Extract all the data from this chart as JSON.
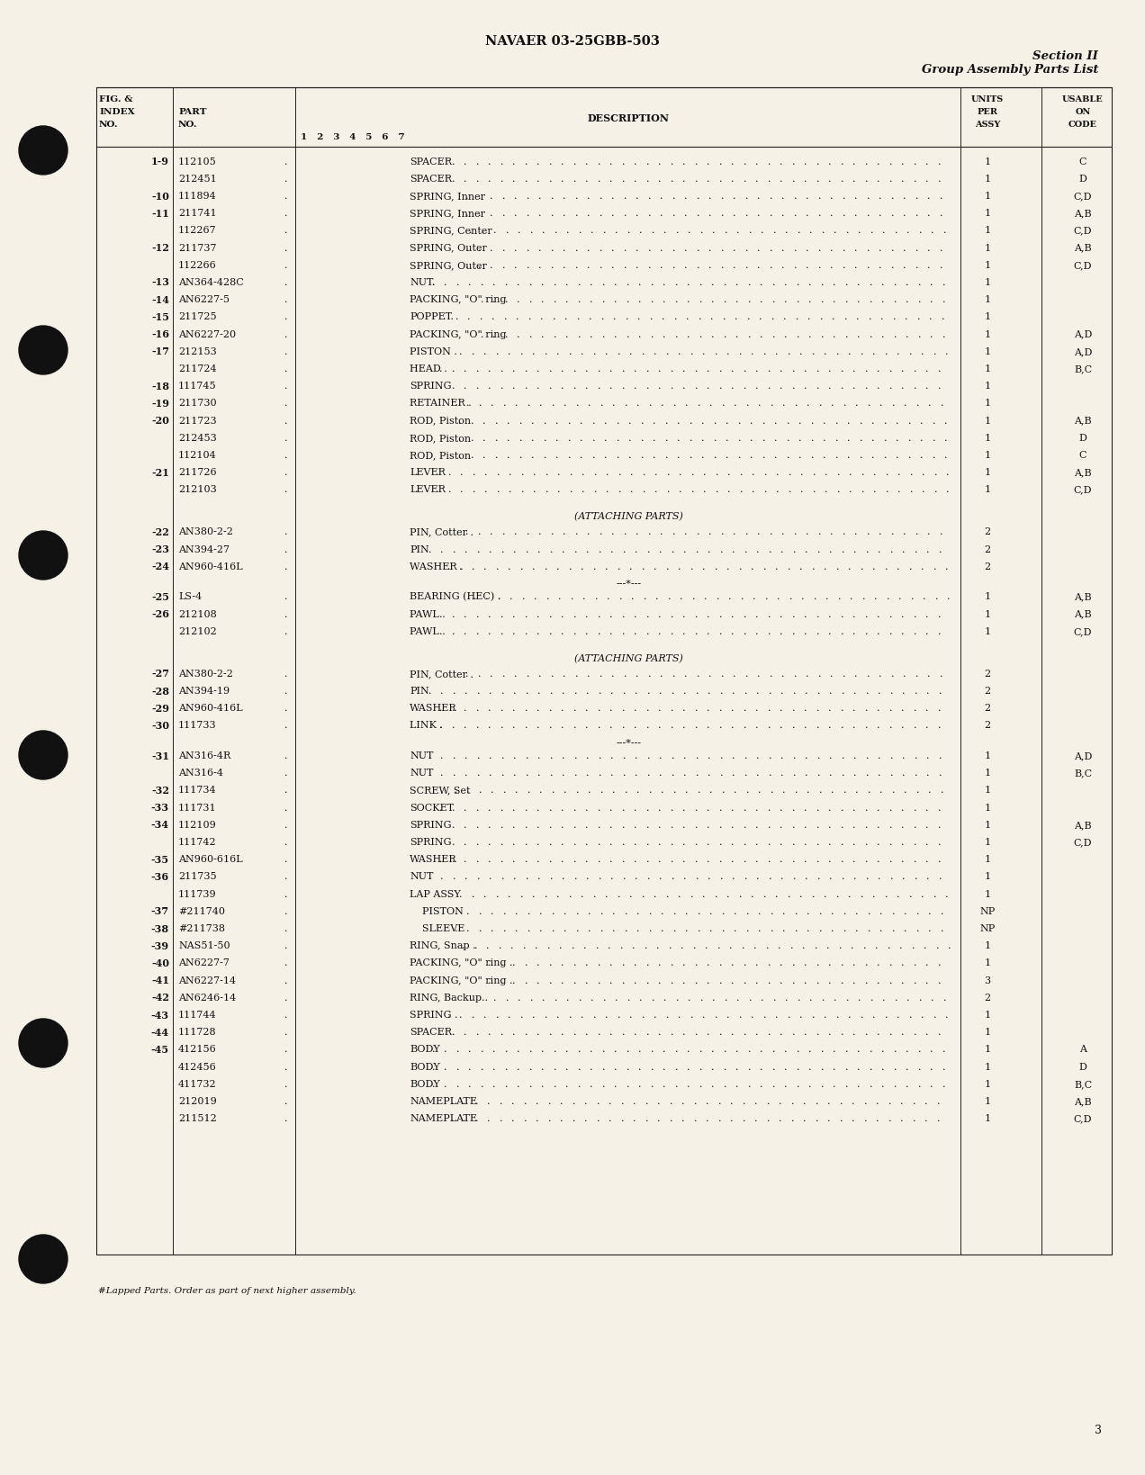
{
  "bg_color": "#f5f1e6",
  "header_title": "NAVAER 03-25GBB-503",
  "header_right_line1": "Section II",
  "header_right_line2": "Group Assembly Parts List",
  "rows": [
    {
      "fig": "1-9",
      "part": "112105",
      "desc": "SPACER",
      "units": "1",
      "code": "C",
      "type": "data"
    },
    {
      "fig": "",
      "part": "212451",
      "desc": "SPACER",
      "units": "1",
      "code": "D",
      "type": "data"
    },
    {
      "fig": "-10",
      "part": "111894",
      "desc": "SPRING, Inner",
      "units": "1",
      "code": "C,D",
      "type": "data"
    },
    {
      "fig": "-11",
      "part": "211741",
      "desc": "SPRING, Inner",
      "units": "1",
      "code": "A,B",
      "type": "data"
    },
    {
      "fig": "",
      "part": "112267",
      "desc": "SPRING, Center",
      "units": "1",
      "code": "C,D",
      "type": "data"
    },
    {
      "fig": "-12",
      "part": "211737",
      "desc": "SPRING, Outer",
      "units": "1",
      "code": "A,B",
      "type": "data"
    },
    {
      "fig": "",
      "part": "112266",
      "desc": "SPRING, Outer",
      "units": "1",
      "code": "C,D",
      "type": "data"
    },
    {
      "fig": "-13",
      "part": "AN364-428C",
      "desc": "NUT.",
      "units": "1",
      "code": "",
      "type": "data"
    },
    {
      "fig": "-14",
      "part": "AN6227-5",
      "desc": "PACKING, \"O\" ring",
      "units": "1",
      "code": "",
      "type": "data"
    },
    {
      "fig": "-15",
      "part": "211725",
      "desc": "POPPET.",
      "units": "1",
      "code": "",
      "type": "data"
    },
    {
      "fig": "-16",
      "part": "AN6227-20",
      "desc": "PACKING, \"O\" ring",
      "units": "1",
      "code": "A,D",
      "type": "data"
    },
    {
      "fig": "-17",
      "part": "212153",
      "desc": "PISTON .",
      "units": "1",
      "code": "A,D",
      "type": "data"
    },
    {
      "fig": "",
      "part": "211724",
      "desc": "HEAD .",
      "units": "1",
      "code": "B,C",
      "type": "data"
    },
    {
      "fig": "-18",
      "part": "111745",
      "desc": "SPRING",
      "units": "1",
      "code": "",
      "type": "data"
    },
    {
      "fig": "-19",
      "part": "211730",
      "desc": "RETAINER .",
      "units": "1",
      "code": "",
      "type": "data"
    },
    {
      "fig": "-20",
      "part": "211723",
      "desc": "ROD, Piston",
      "units": "1",
      "code": "A,B",
      "type": "data"
    },
    {
      "fig": "",
      "part": "212453",
      "desc": "ROD, Piston",
      "units": "1",
      "code": "D",
      "type": "data"
    },
    {
      "fig": "",
      "part": "112104",
      "desc": "ROD, Piston",
      "units": "1",
      "code": "C",
      "type": "data"
    },
    {
      "fig": "-21",
      "part": "211726",
      "desc": "LEVER",
      "units": "1",
      "code": "A,B",
      "type": "data"
    },
    {
      "fig": "",
      "part": "212103",
      "desc": "LEVER",
      "units": "1",
      "code": "C,D",
      "type": "data"
    },
    {
      "fig": "",
      "part": "",
      "desc": "",
      "units": "",
      "code": "",
      "type": "blank"
    },
    {
      "fig": "",
      "part": "",
      "desc": "(ATTACHING PARTS)",
      "units": "",
      "code": "",
      "type": "attaching"
    },
    {
      "fig": "-22",
      "part": "AN380-2-2",
      "desc": "PIN, Cotter .",
      "units": "2",
      "code": "",
      "type": "data"
    },
    {
      "fig": "-23",
      "part": "AN394-27",
      "desc": "PIN",
      "units": "2",
      "code": "",
      "type": "data"
    },
    {
      "fig": "-24",
      "part": "AN960-416L",
      "desc": "WASHER .",
      "units": "2",
      "code": "",
      "type": "data"
    },
    {
      "fig": "",
      "part": "",
      "desc": "---*---",
      "units": "",
      "code": "",
      "type": "separator"
    },
    {
      "fig": "-25",
      "part": "LS-4",
      "desc": "BEARING (HEC) .",
      "units": "1",
      "code": "A,B",
      "type": "data"
    },
    {
      "fig": "-26",
      "part": "212108",
      "desc": "PAWL .",
      "units": "1",
      "code": "A,B",
      "type": "data"
    },
    {
      "fig": "",
      "part": "212102",
      "desc": "PAWL .",
      "units": "1",
      "code": "C,D",
      "type": "data"
    },
    {
      "fig": "",
      "part": "",
      "desc": "",
      "units": "",
      "code": "",
      "type": "blank"
    },
    {
      "fig": "",
      "part": "",
      "desc": "(ATTACHING PARTS)",
      "units": "",
      "code": "",
      "type": "attaching"
    },
    {
      "fig": "-27",
      "part": "AN380-2-2",
      "desc": "PIN, Cotter .",
      "units": "2",
      "code": "",
      "type": "data"
    },
    {
      "fig": "-28",
      "part": "AN394-19",
      "desc": "PIN",
      "units": "2",
      "code": "",
      "type": "data"
    },
    {
      "fig": "-29",
      "part": "AN960-416L",
      "desc": "WASHER",
      "units": "2",
      "code": "",
      "type": "data"
    },
    {
      "fig": "-30",
      "part": "111733",
      "desc": "LINK .",
      "units": "2",
      "code": "",
      "type": "data"
    },
    {
      "fig": "",
      "part": "",
      "desc": "---*---",
      "units": "",
      "code": "",
      "type": "separator"
    },
    {
      "fig": "-31",
      "part": "AN316-4R",
      "desc": "NUT",
      "units": "1",
      "code": "A,D",
      "type": "data"
    },
    {
      "fig": "",
      "part": "AN316-4",
      "desc": "NUT",
      "units": "1",
      "code": "B,C",
      "type": "data"
    },
    {
      "fig": "-32",
      "part": "111734",
      "desc": "SCREW, Set",
      "units": "1",
      "code": "",
      "type": "data"
    },
    {
      "fig": "-33",
      "part": "111731",
      "desc": "SOCKET",
      "units": "1",
      "code": "",
      "type": "data"
    },
    {
      "fig": "-34",
      "part": "112109",
      "desc": "SPRING",
      "units": "1",
      "code": "A,B",
      "type": "data"
    },
    {
      "fig": "",
      "part": "111742",
      "desc": "SPRING",
      "units": "1",
      "code": "C,D",
      "type": "data"
    },
    {
      "fig": "-35",
      "part": "AN960-616L",
      "desc": "WASHER",
      "units": "1",
      "code": "",
      "type": "data"
    },
    {
      "fig": "-36",
      "part": "211735",
      "desc": "NUT",
      "units": "1",
      "code": "",
      "type": "data"
    },
    {
      "fig": "",
      "part": "111739",
      "desc": "LAP ASSY",
      "units": "1",
      "code": "",
      "type": "data"
    },
    {
      "fig": "-37",
      "part": "#211740",
      "desc": "    PISTON",
      "units": "NP",
      "code": "",
      "type": "data"
    },
    {
      "fig": "-38",
      "part": "#211738",
      "desc": "    SLEEVE",
      "units": "NP",
      "code": "",
      "type": "data"
    },
    {
      "fig": "-39",
      "part": "NAS51-50",
      "desc": "RING, Snap .",
      "units": "1",
      "code": "",
      "type": "data"
    },
    {
      "fig": "-40",
      "part": "AN6227-7",
      "desc": "PACKING, \"O\" ring .",
      "units": "1",
      "code": "",
      "type": "data"
    },
    {
      "fig": "-41",
      "part": "AN6227-14",
      "desc": "PACKING, \"O\" ring .",
      "units": "3",
      "code": "",
      "type": "data"
    },
    {
      "fig": "-42",
      "part": "AN6246-14",
      "desc": "RING, Backup .",
      "units": "2",
      "code": "",
      "type": "data"
    },
    {
      "fig": "-43",
      "part": "111744",
      "desc": "SPRING .",
      "units": "1",
      "code": "",
      "type": "data"
    },
    {
      "fig": "-44",
      "part": "111728",
      "desc": "SPACER",
      "units": "1",
      "code": "",
      "type": "data"
    },
    {
      "fig": "-45",
      "part": "412156",
      "desc": "BODY",
      "units": "1",
      "code": "A",
      "type": "data"
    },
    {
      "fig": "",
      "part": "412456",
      "desc": "BODY",
      "units": "1",
      "code": "D",
      "type": "data"
    },
    {
      "fig": "",
      "part": "411732",
      "desc": "BODY",
      "units": "1",
      "code": "B,C",
      "type": "data"
    },
    {
      "fig": "",
      "part": "212019",
      "desc": "NAMEPLATE",
      "units": "1",
      "code": "A,B",
      "type": "data"
    },
    {
      "fig": "",
      "part": "211512",
      "desc": "NAMEPLATE",
      "units": "1",
      "code": "C,D",
      "type": "data"
    }
  ],
  "footnote": "#Lapped Parts. Order as part of next higher assembly.",
  "page_number": "3",
  "hole_punches_y": [
    168,
    390,
    618,
    840,
    1160,
    1400
  ]
}
